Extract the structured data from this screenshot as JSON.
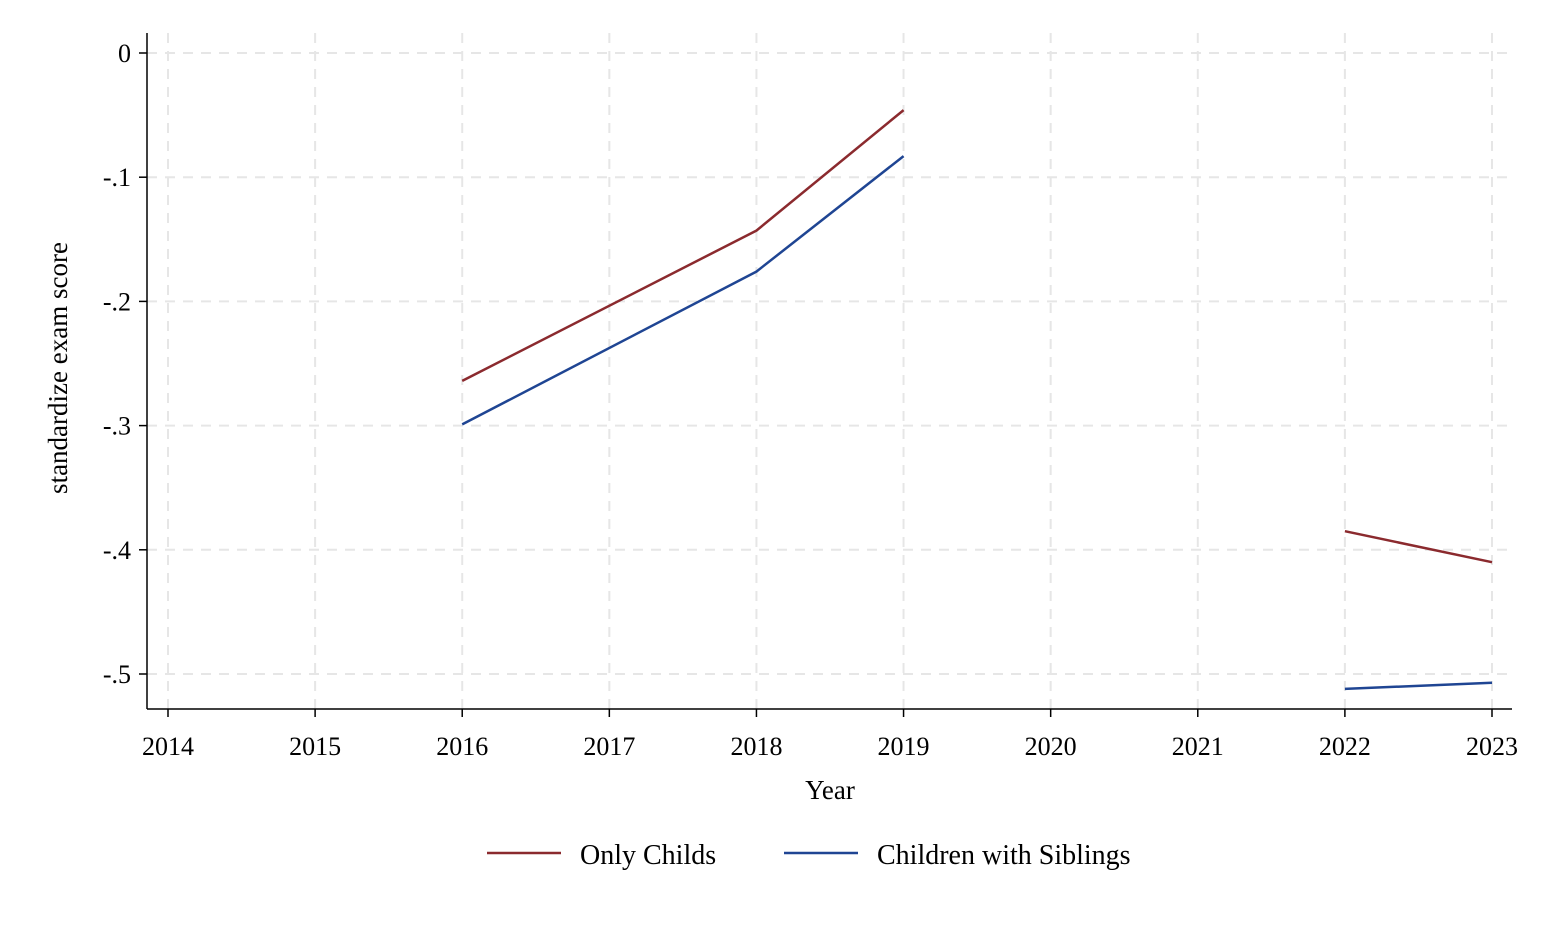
{
  "chart_data": {
    "type": "line",
    "title": "",
    "xlabel": "Year",
    "ylabel": "standardize exam score",
    "xlim": [
      2014,
      2023
    ],
    "ylim": [
      -0.53,
      0.015
    ],
    "xticks": [
      2014,
      2015,
      2016,
      2017,
      2018,
      2019,
      2020,
      2021,
      2022,
      2023
    ],
    "xtick_labels": [
      "2014",
      "2015",
      "2016",
      "2017",
      "2018",
      "2019",
      "2020",
      "2021",
      "2022",
      "2023"
    ],
    "yticks": [
      0,
      -0.1,
      -0.2,
      -0.3,
      -0.4,
      -0.5
    ],
    "ytick_labels": [
      "0",
      "-.1",
      "-.2",
      "-.3",
      "-.4",
      "-.5"
    ],
    "grid": true,
    "legend_position": "bottom",
    "series": [
      {
        "name": "Only Childs",
        "color": "#8b2a2e",
        "segments": [
          {
            "x": [
              2016,
              2018,
              2019
            ],
            "y": [
              -0.264,
              -0.143,
              -0.046
            ]
          },
          {
            "x": [
              2022,
              2023
            ],
            "y": [
              -0.385,
              -0.41
            ]
          }
        ]
      },
      {
        "name": "Children with Siblings",
        "color": "#1f4593",
        "segments": [
          {
            "x": [
              2016,
              2018,
              2019
            ],
            "y": [
              -0.299,
              -0.176,
              -0.083
            ]
          },
          {
            "x": [
              2022,
              2023
            ],
            "y": [
              -0.512,
              -0.507
            ]
          }
        ]
      }
    ]
  }
}
